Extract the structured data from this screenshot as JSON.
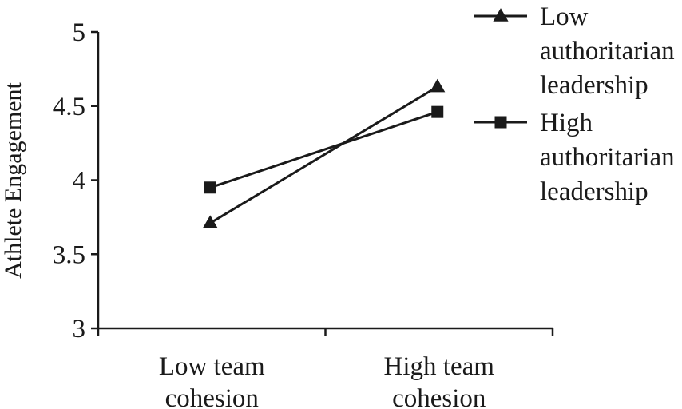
{
  "chart_data": {
    "type": "line",
    "ylabel": "Athlete Engagement",
    "xlabel": "",
    "title": "",
    "ylim": [
      3,
      5
    ],
    "yticks": [
      "3",
      "3.5",
      "4",
      "4.5",
      "5"
    ],
    "categories": [
      [
        "Low  team",
        "cohesion"
      ],
      [
        "High  team",
        "cohesion"
      ]
    ],
    "series": [
      {
        "name": [
          "Low",
          "authoritarian",
          "leadership"
        ],
        "marker": "triangle",
        "values": [
          3.71,
          4.63
        ]
      },
      {
        "name": [
          "High",
          "authoritarian",
          "leadership"
        ],
        "marker": "square",
        "values": [
          3.95,
          4.46
        ]
      }
    ],
    "legend_position": "top-right",
    "grid": false,
    "colors": {
      "ink": "#1a1a1a"
    }
  }
}
